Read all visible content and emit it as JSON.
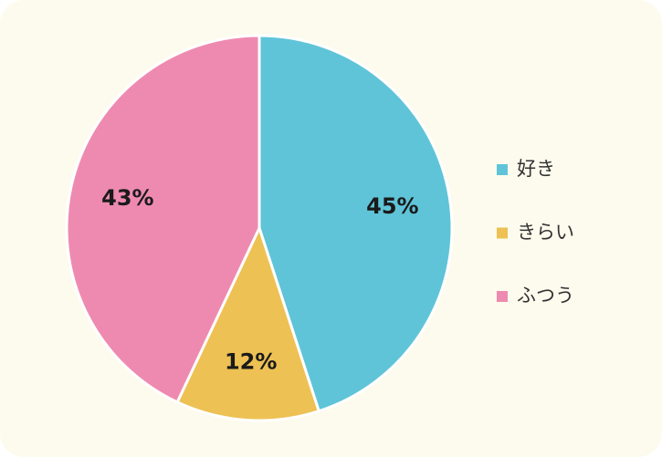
{
  "chart_data": {
    "type": "pie",
    "categories": [
      "好き",
      "きらい",
      "ふつう"
    ],
    "values": [
      45,
      12,
      43
    ],
    "value_labels": [
      "45%",
      "12%",
      "43%"
    ],
    "colors": [
      "#5fc4d8",
      "#edc153",
      "#ee8ab0"
    ],
    "legend": "right"
  }
}
